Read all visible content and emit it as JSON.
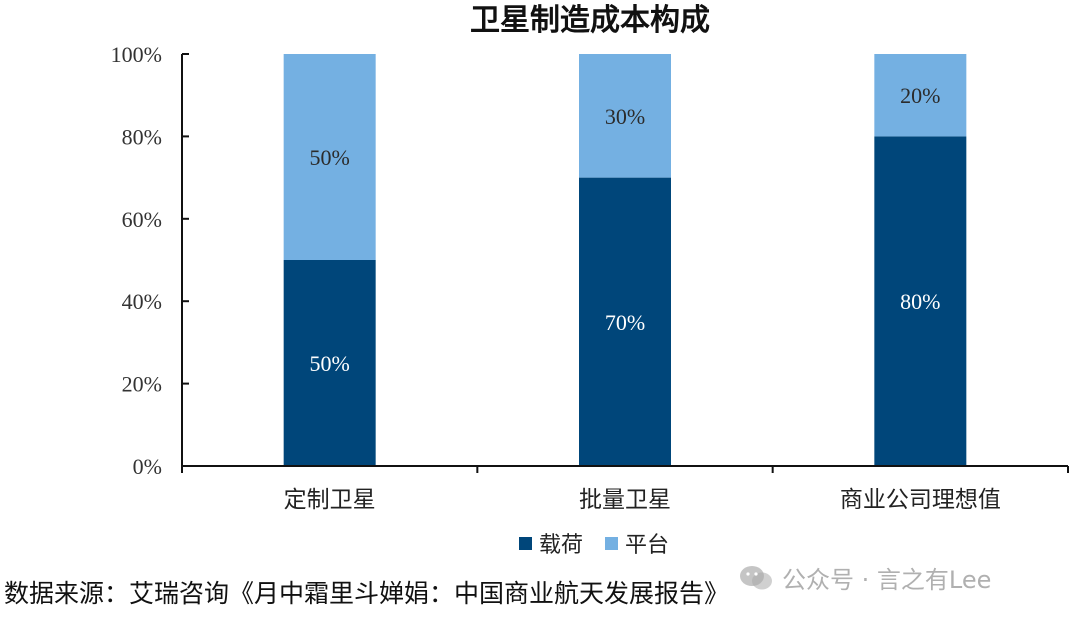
{
  "chart_data": {
    "type": "bar",
    "stacked": true,
    "title": "卫星制造成本构成",
    "categories": [
      "定制卫星",
      "批量卫星",
      "商业公司理想值"
    ],
    "series": [
      {
        "name": "载荷",
        "values": [
          50,
          70,
          80
        ],
        "labels": [
          "50%",
          "70%",
          "80%"
        ],
        "color": "#00467a"
      },
      {
        "name": "平台",
        "values": [
          50,
          30,
          20
        ],
        "labels": [
          "50%",
          "30%",
          "20%"
        ],
        "color": "#74b0e2"
      }
    ],
    "ylim": [
      0,
      100
    ],
    "yticks": [
      "0%",
      "20%",
      "40%",
      "60%",
      "80%",
      "100%"
    ],
    "legend_position": "bottom",
    "grid": false
  },
  "footer": {
    "source": "数据来源：艾瑞咨询《月中霜里斗婵娟：中国商业航天发展报告》",
    "watermark": "公众号 · 言之有Lee"
  },
  "colors": {
    "payload": "#00467a",
    "platform": "#74b0e2"
  }
}
